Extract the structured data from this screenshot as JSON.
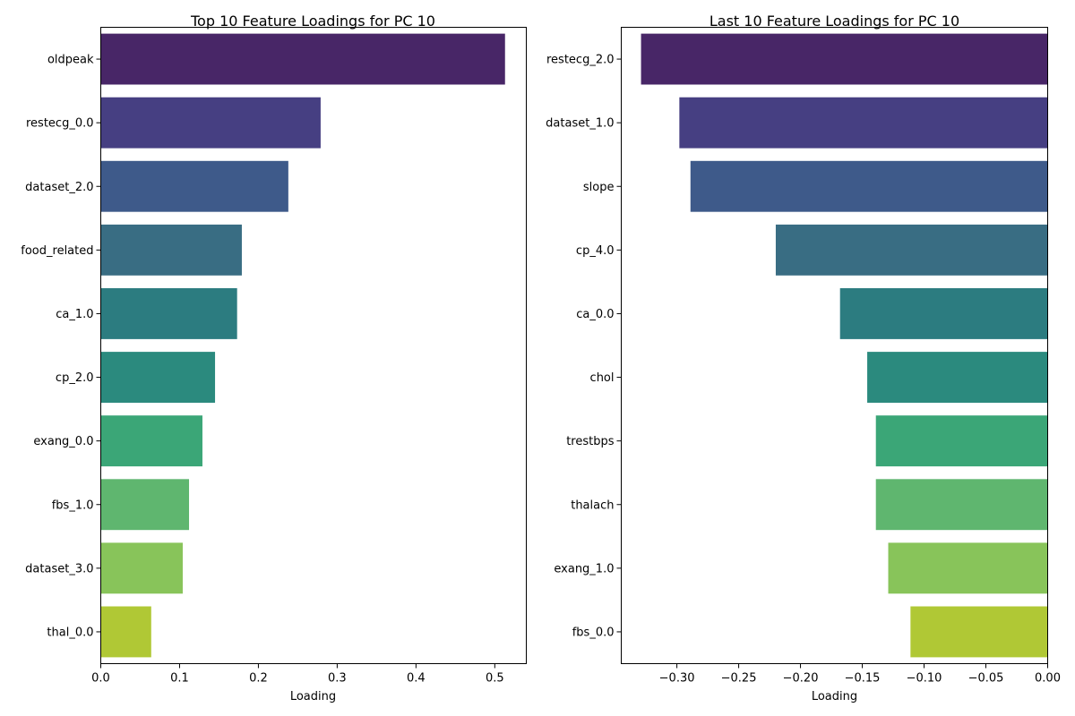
{
  "chart_data": [
    {
      "type": "bar",
      "orientation": "horizontal",
      "title": "Top 10 Feature Loadings for PC 10",
      "xlabel": "Loading",
      "ylabel": "",
      "xlim": [
        0,
        0.54
      ],
      "xticks": [
        "0.0",
        "0.1",
        "0.2",
        "0.3",
        "0.4",
        "0.5"
      ],
      "xtick_values": [
        0,
        0.1,
        0.2,
        0.3,
        0.4,
        0.5
      ],
      "categories": [
        "oldpeak",
        "restecg_0.0",
        "dataset_2.0",
        "food_related",
        "ca_1.0",
        "cp_2.0",
        "exang_0.0",
        "fbs_1.0",
        "dataset_3.0",
        "thal_0.0"
      ],
      "values": [
        0.513,
        0.279,
        0.238,
        0.179,
        0.173,
        0.145,
        0.129,
        0.112,
        0.104,
        0.064
      ],
      "colors": [
        "#482667",
        "#463f82",
        "#3e5a8a",
        "#396d83",
        "#2c7c80",
        "#2b8a7e",
        "#3ba677",
        "#5fb66f",
        "#88c45a",
        "#b0c835"
      ],
      "grid": false,
      "legend": "none"
    },
    {
      "type": "bar",
      "orientation": "horizontal",
      "title": "Last 10 Feature Loadings for PC 10",
      "xlabel": "Loading",
      "ylabel": "",
      "xlim": [
        -0.345,
        0.0
      ],
      "xticks": [
        "−0.30",
        "−0.25",
        "−0.20",
        "−0.15",
        "−0.10",
        "−0.05",
        "0.00"
      ],
      "xtick_values": [
        -0.3,
        -0.25,
        -0.2,
        -0.15,
        -0.1,
        -0.05,
        0.0
      ],
      "categories": [
        "restecg_2.0",
        "dataset_1.0",
        "slope",
        "cp_4.0",
        "ca_0.0",
        "chol",
        "trestbps",
        "thalach",
        "exang_1.0",
        "fbs_0.0"
      ],
      "values": [
        -0.329,
        -0.298,
        -0.289,
        -0.22,
        -0.168,
        -0.146,
        -0.139,
        -0.139,
        -0.129,
        -0.111
      ],
      "colors": [
        "#482667",
        "#463f82",
        "#3e5a8a",
        "#396d83",
        "#2c7c80",
        "#2b8a7e",
        "#3ba677",
        "#5fb66f",
        "#88c45a",
        "#b0c835"
      ],
      "grid": false,
      "legend": "none"
    }
  ]
}
